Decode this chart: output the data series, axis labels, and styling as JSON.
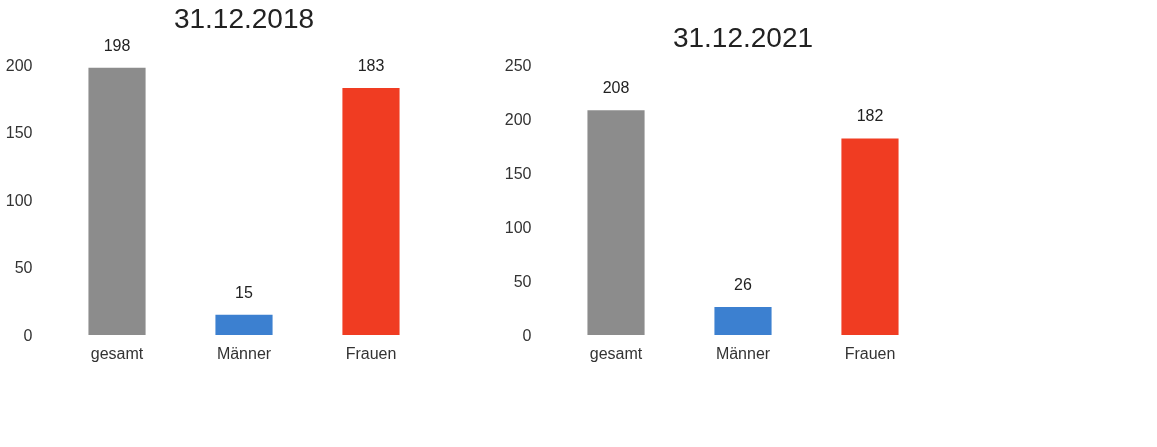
{
  "chart_data": [
    {
      "type": "bar",
      "title": "31.12.2018",
      "categories": [
        "gesamt",
        "Männer",
        "Frauen"
      ],
      "values": [
        198,
        15,
        183
      ],
      "colors": [
        "#8c8c8c",
        "#3c80d0",
        "#f03c22"
      ],
      "ylim": [
        0,
        200
      ],
      "yticks": [
        0,
        50,
        100,
        150,
        200
      ],
      "data_labels": true,
      "grid": false
    },
    {
      "type": "bar",
      "title": "31.12.2021",
      "categories": [
        "gesamt",
        "Männer",
        "Frauen"
      ],
      "values": [
        208,
        26,
        182
      ],
      "colors": [
        "#8c8c8c",
        "#3c80d0",
        "#f03c22"
      ],
      "ylim": [
        0,
        250
      ],
      "yticks": [
        0,
        50,
        100,
        150,
        200,
        250
      ],
      "data_labels": true,
      "grid": false
    }
  ]
}
